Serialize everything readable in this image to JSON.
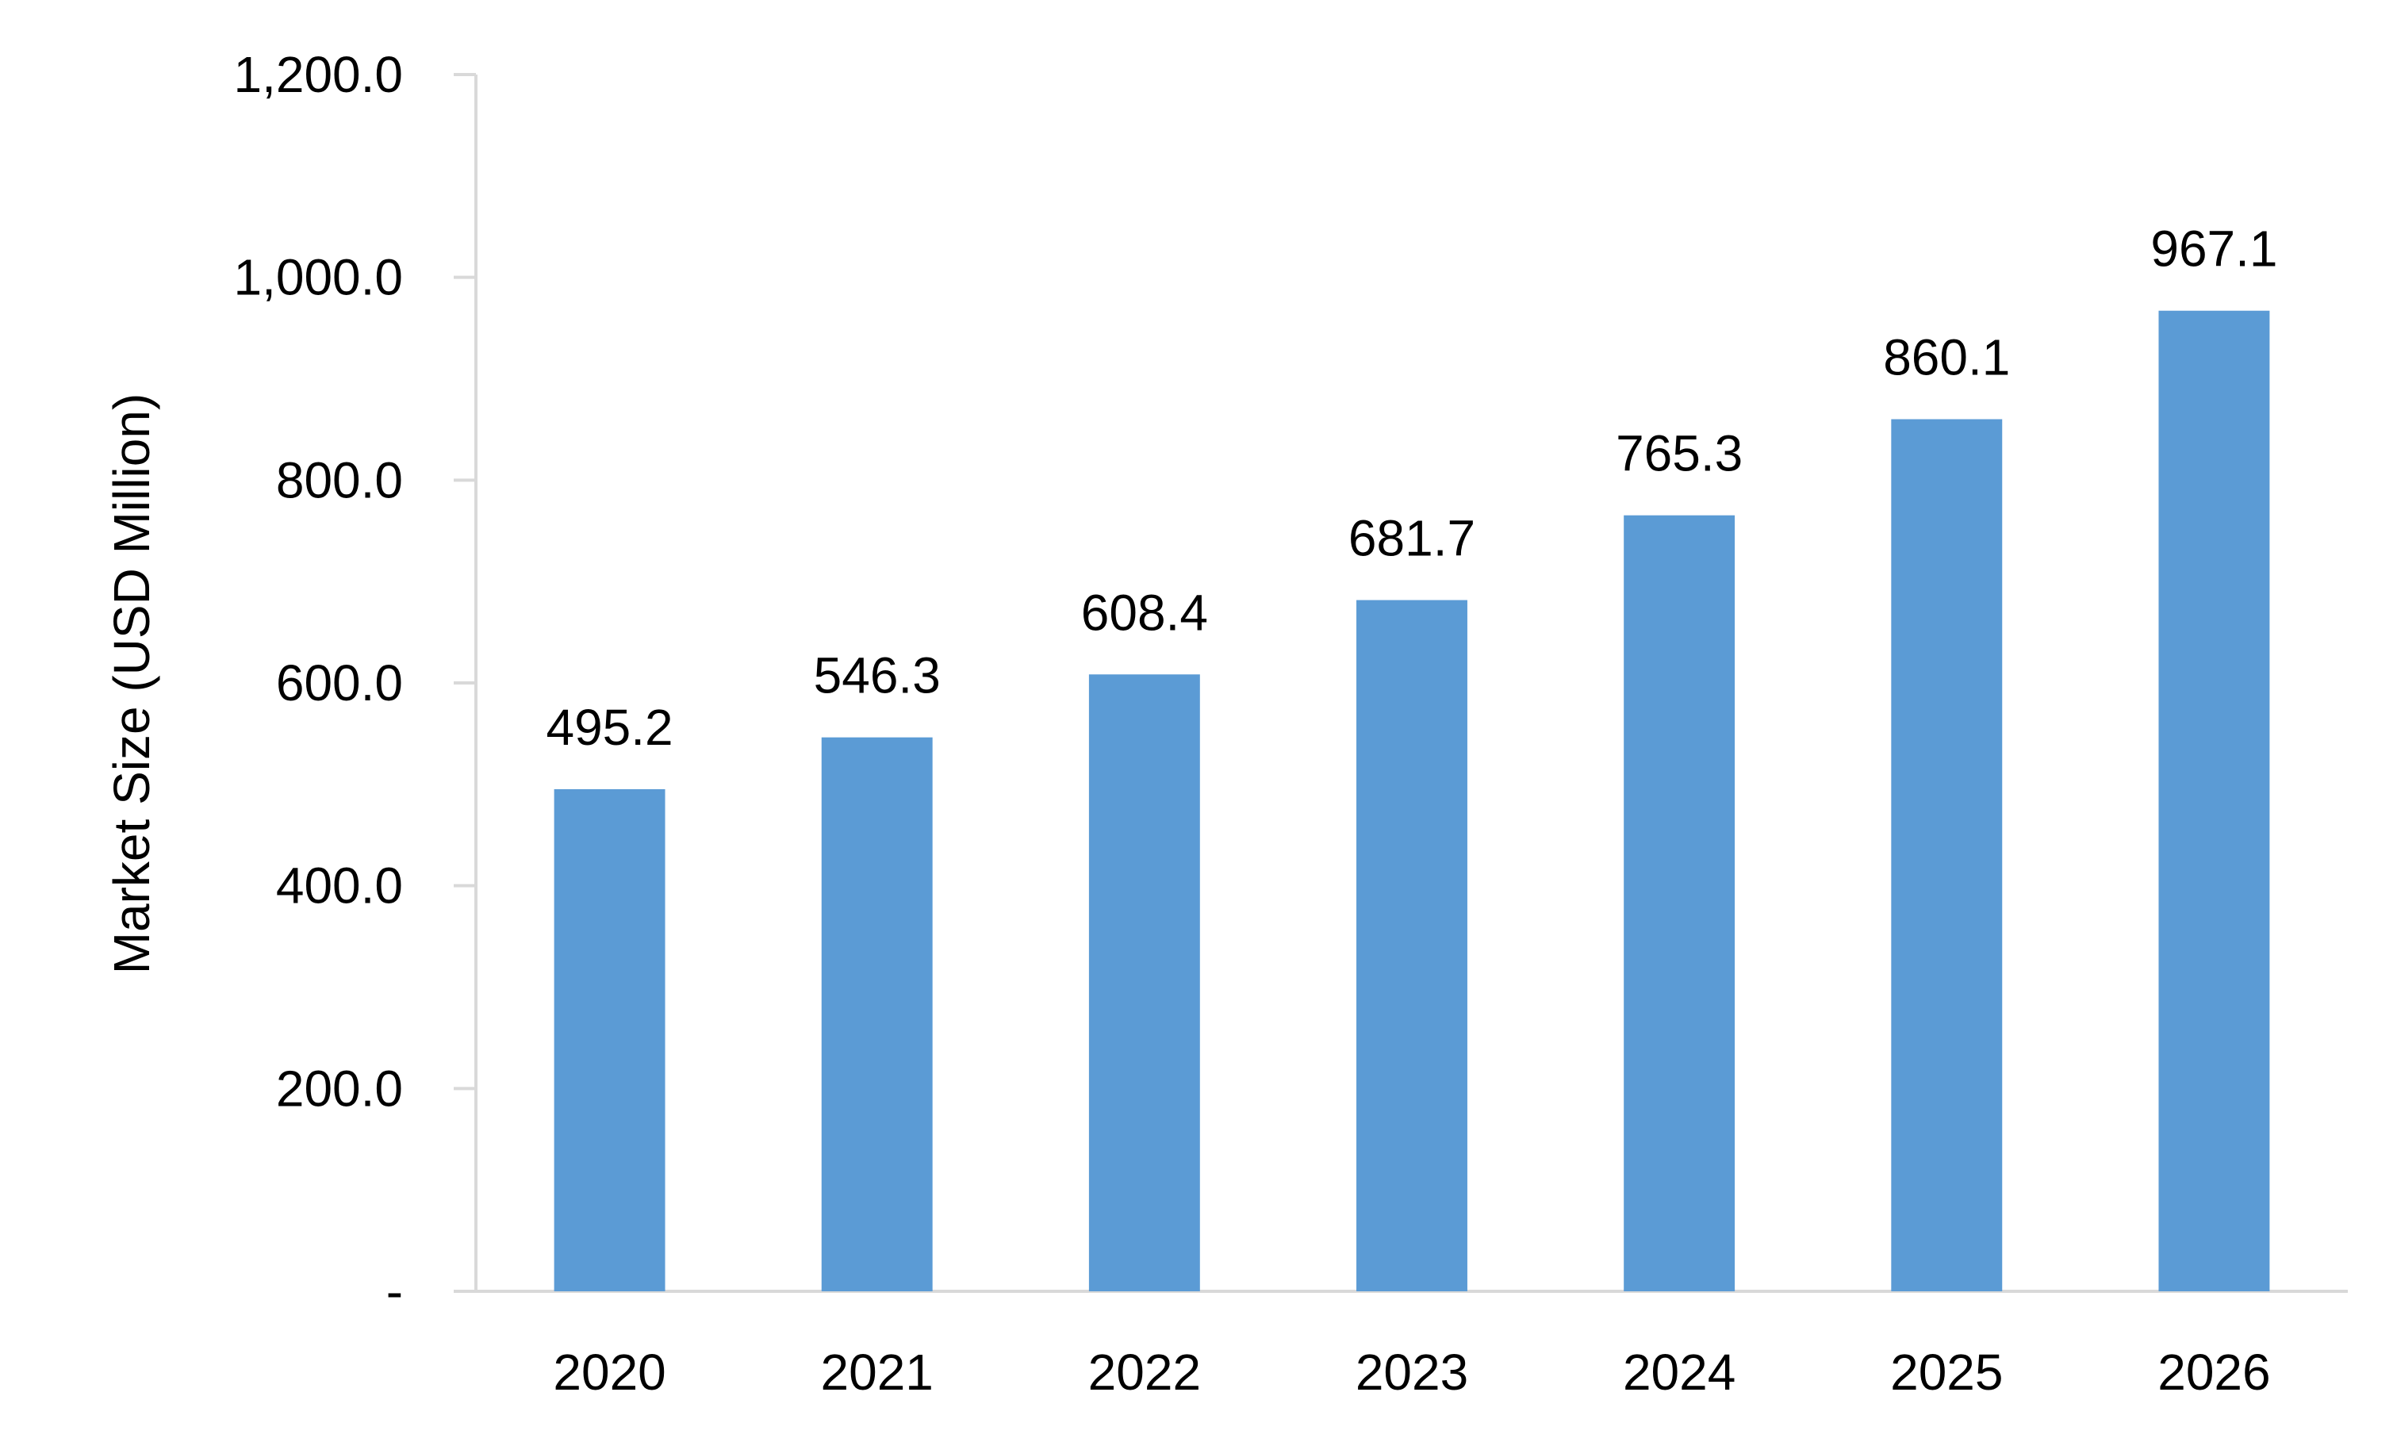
{
  "chart_data": {
    "type": "bar",
    "title": "",
    "xlabel": "",
    "ylabel": "Market Size (USD Million)",
    "categories": [
      "2020",
      "2021",
      "2022",
      "2023",
      "2024",
      "2025",
      "2026"
    ],
    "values": [
      495.2,
      546.3,
      608.4,
      681.7,
      765.3,
      860.1,
      967.1
    ],
    "value_labels": [
      "495.2",
      "546.3",
      "608.4",
      "681.7",
      "765.3",
      "860.1",
      "967.1"
    ],
    "ylim": [
      0,
      1200
    ],
    "yticks": [
      0,
      200,
      400,
      600,
      800,
      1000,
      1200
    ],
    "ytick_labels": [
      "-",
      "200.0",
      "400.0",
      "600.0",
      "800.0",
      "1,000.0",
      "1,200.0"
    ],
    "grid": false,
    "legend": "none",
    "bar_color": "#5b9bd5",
    "axis_color": "#d9d9d9"
  }
}
